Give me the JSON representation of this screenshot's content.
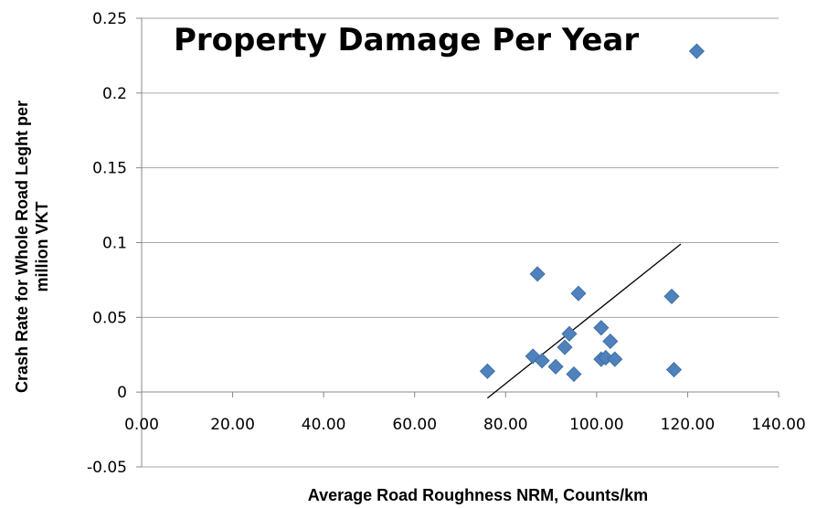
{
  "chart_data": {
    "type": "scatter",
    "title": "Property Damage Per Year",
    "xlabel": "Average Road Roughness NRM, Counts/km",
    "ylabel_lines": [
      "Crash Rate for Whole Road Leght per",
      "million VKT"
    ],
    "xlim": [
      0,
      140
    ],
    "ylim": [
      -0.05,
      0.25
    ],
    "x_ticks": [
      "0.00",
      "20.00",
      "40.00",
      "60.00",
      "80.00",
      "100.00",
      "120.00",
      "140.00"
    ],
    "y_ticks": [
      "-0.05",
      "0",
      "0.05",
      "0.1",
      "0.15",
      "0.2",
      "0.25"
    ],
    "grid": "horizontal",
    "marker_color": "#4F81BD",
    "trendline_color": "#000000",
    "points": [
      {
        "x": 76.0,
        "y": 0.014
      },
      {
        "x": 86.0,
        "y": 0.024
      },
      {
        "x": 87.0,
        "y": 0.079
      },
      {
        "x": 88.0,
        "y": 0.021
      },
      {
        "x": 91.0,
        "y": 0.017
      },
      {
        "x": 93.0,
        "y": 0.03
      },
      {
        "x": 94.0,
        "y": 0.039
      },
      {
        "x": 95.0,
        "y": 0.012
      },
      {
        "x": 96.0,
        "y": 0.066
      },
      {
        "x": 101.0,
        "y": 0.043
      },
      {
        "x": 101.0,
        "y": 0.022
      },
      {
        "x": 102.0,
        "y": 0.023
      },
      {
        "x": 103.0,
        "y": 0.034
      },
      {
        "x": 104.0,
        "y": 0.022
      },
      {
        "x": 116.5,
        "y": 0.064
      },
      {
        "x": 117.0,
        "y": 0.015
      },
      {
        "x": 122.0,
        "y": 0.228
      }
    ],
    "trendline": [
      {
        "x": 76.0,
        "y": -0.004
      },
      {
        "x": 118.5,
        "y": 0.099
      }
    ]
  }
}
